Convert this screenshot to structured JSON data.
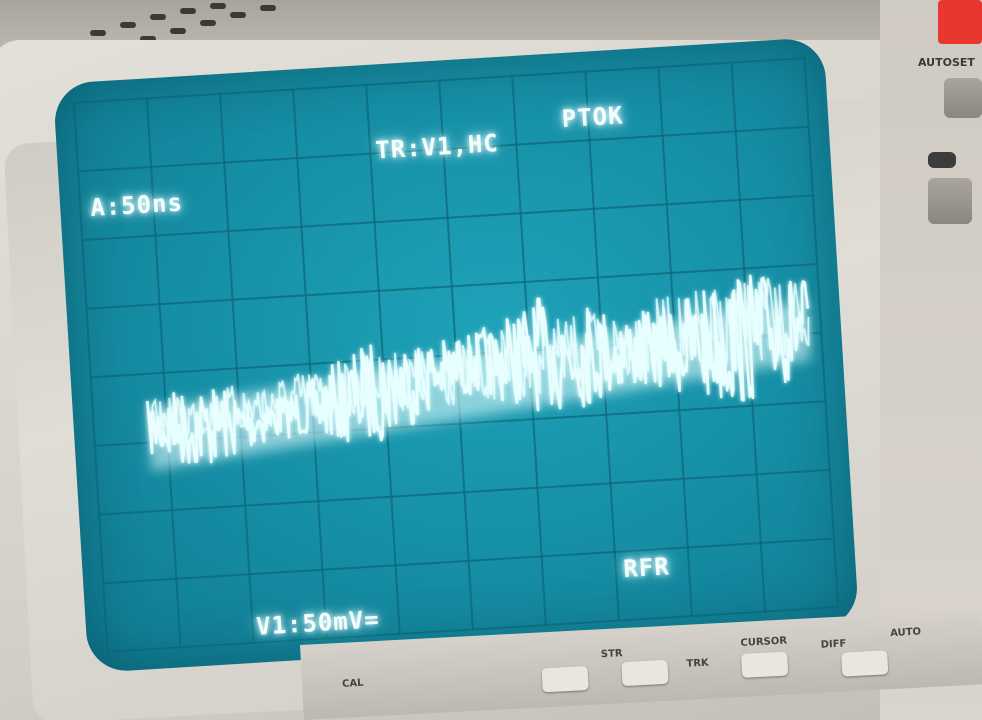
{
  "scene": {
    "subject": "oscilloscope-crt-display",
    "colors": {
      "screen": "#168fa6",
      "grid": "#0c6676",
      "trace": "#e8ffff",
      "readout_text": "#f2ffff",
      "bezel": "#dcd8d1",
      "red_button": "#e8372f"
    }
  },
  "screen": {
    "timebase": "A:50ns",
    "trigger": "TR:V1,HC",
    "trigger_mode": "PTOK",
    "acquisition_mode": "RFR",
    "channel_scale": "V1:50mV="
  },
  "panel": {
    "autoset_label": "AUTOSET"
  },
  "bottom_panel": {
    "labels": [
      "CAL",
      "STR",
      "TRK",
      "CURSOR",
      "DIFF",
      "AUTO"
    ]
  }
}
